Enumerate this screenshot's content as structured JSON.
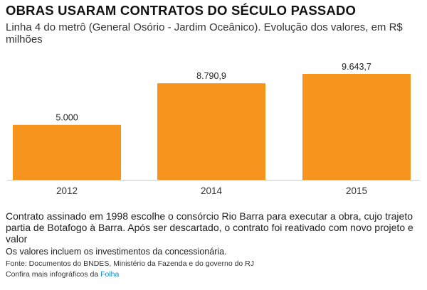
{
  "header": {
    "title": "OBRAS USARAM CONTRATOS DO SÉCULO PASSADO",
    "subtitle": "Linha 4 do metrô (General Osório - Jardim Oceânico). Evolução dos valores, em R$ milhões"
  },
  "chart_data": {
    "type": "bar",
    "categories": [
      "2012",
      "2014",
      "2015"
    ],
    "values": [
      5000,
      8790.9,
      9643.7
    ],
    "value_labels": [
      "5.000",
      "8.790,9",
      "9.643,7"
    ],
    "ylim": [
      0,
      9643.7
    ],
    "grid": false,
    "legend": "none",
    "colors": {
      "bar": "#f7941d",
      "axis": "#cccccc"
    }
  },
  "footer": {
    "note": "Contrato assinado em 1998 escolhe o consórcio Rio Barra para executar a obra, cujo trajeto partia de Botafogo à Barra. Após ser descartado, o contrato foi reativado com novo projeto e valor",
    "note2": "Os valores incluem os investimentos da concessionária.",
    "source": "Fonte: Documentos do BNDES, Ministério da Fazenda e do governo do RJ",
    "more_prefix": "Confira mais infográficos da ",
    "more_link": "Folha"
  }
}
